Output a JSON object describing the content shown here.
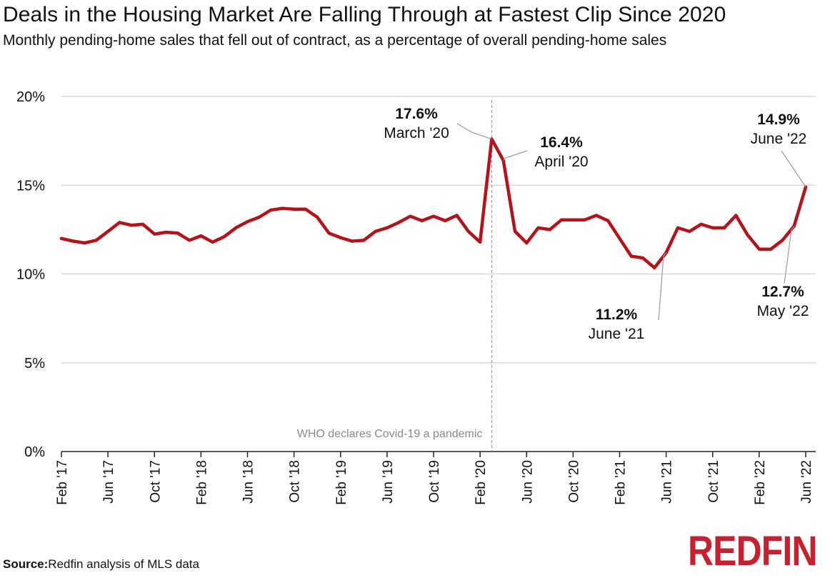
{
  "title": "Deals in the Housing Market Are Falling Through at Fastest Clip Since 2020",
  "subtitle": "Monthly pending-home sales that fell out of contract, as a percentage of overall pending-home sales",
  "source_label": "Source:",
  "source_text": "Redfin analysis of MLS data",
  "logo_text": "REDFIN",
  "colors": {
    "line": "#b5121b",
    "grid": "#d9d9d9",
    "brand": "#c8202f",
    "leader": "#9a9a9a"
  },
  "chart_data": {
    "type": "line",
    "ylim": [
      0,
      20
    ],
    "y_ticks": [
      0,
      5,
      10,
      15,
      20
    ],
    "y_tick_labels": [
      "0%",
      "5%",
      "10%",
      "15%",
      "20%"
    ],
    "x_tick_labels": [
      "Feb '17",
      "Jun '17",
      "Oct '17",
      "Feb '18",
      "Jun '18",
      "Oct '18",
      "Feb '19",
      "Jun '19",
      "Oct '19",
      "Feb '20",
      "Jun '20",
      "Oct '20",
      "Feb '21",
      "Jun '21",
      "Oct '21",
      "Feb '22",
      "Jun '22"
    ],
    "x_tick_months": [
      "2017-02",
      "2017-06",
      "2017-10",
      "2018-02",
      "2018-06",
      "2018-10",
      "2019-02",
      "2019-06",
      "2019-10",
      "2020-02",
      "2020-06",
      "2020-10",
      "2021-02",
      "2021-06",
      "2021-10",
      "2022-02",
      "2022-06"
    ],
    "grid": true,
    "series": [
      {
        "x": [
          "2017-02",
          "2017-03",
          "2017-04",
          "2017-05",
          "2017-06",
          "2017-07",
          "2017-08",
          "2017-09",
          "2017-10",
          "2017-11",
          "2017-12",
          "2018-01",
          "2018-02",
          "2018-03",
          "2018-04",
          "2018-05",
          "2018-06",
          "2018-07",
          "2018-08",
          "2018-09",
          "2018-10",
          "2018-11",
          "2018-12",
          "2019-01",
          "2019-02",
          "2019-03",
          "2019-04",
          "2019-05",
          "2019-06",
          "2019-07",
          "2019-08",
          "2019-09",
          "2019-10",
          "2019-11",
          "2019-12",
          "2020-01",
          "2020-02",
          "2020-03",
          "2020-04",
          "2020-05",
          "2020-06",
          "2020-07",
          "2020-08",
          "2020-09",
          "2020-10",
          "2020-11",
          "2020-12",
          "2021-01",
          "2021-02",
          "2021-03",
          "2021-04",
          "2021-05",
          "2021-06",
          "2021-07",
          "2021-08",
          "2021-09",
          "2021-10",
          "2021-11",
          "2021-12",
          "2022-01",
          "2022-02",
          "2022-03",
          "2022-04",
          "2022-05",
          "2022-06"
        ],
        "values": [
          12.0,
          11.85,
          11.75,
          11.9,
          12.4,
          12.9,
          12.75,
          12.8,
          12.25,
          12.35,
          12.3,
          11.9,
          12.15,
          11.8,
          12.1,
          12.6,
          12.95,
          13.2,
          13.6,
          13.7,
          13.65,
          13.65,
          13.2,
          12.3,
          12.05,
          11.85,
          11.9,
          12.4,
          12.6,
          12.9,
          13.25,
          13.0,
          13.25,
          13.0,
          13.3,
          12.4,
          11.8,
          17.6,
          16.4,
          12.4,
          11.75,
          12.6,
          12.5,
          13.05,
          13.05,
          13.05,
          13.3,
          13.0,
          12.0,
          11.0,
          10.9,
          10.35,
          11.2,
          12.6,
          12.4,
          12.8,
          12.6,
          12.6,
          13.3,
          12.2,
          11.4,
          11.4,
          11.9,
          12.7,
          14.9
        ]
      }
    ],
    "reference_line": {
      "x": "2020-03",
      "label": "WHO declares Covid-19 a pandemic"
    },
    "annotations": [
      {
        "value": "17.6%",
        "date": "March '20",
        "x": "2020-03",
        "y": 17.6
      },
      {
        "value": "16.4%",
        "date": "April '20",
        "x": "2020-04",
        "y": 16.4
      },
      {
        "value": "14.9%",
        "date": "June '22",
        "x": "2022-06",
        "y": 14.9
      },
      {
        "value": "11.2%",
        "date": "June '21",
        "x": "2021-06",
        "y": 11.2
      },
      {
        "value": "12.7%",
        "date": "May '22",
        "x": "2022-05",
        "y": 12.7
      }
    ]
  }
}
